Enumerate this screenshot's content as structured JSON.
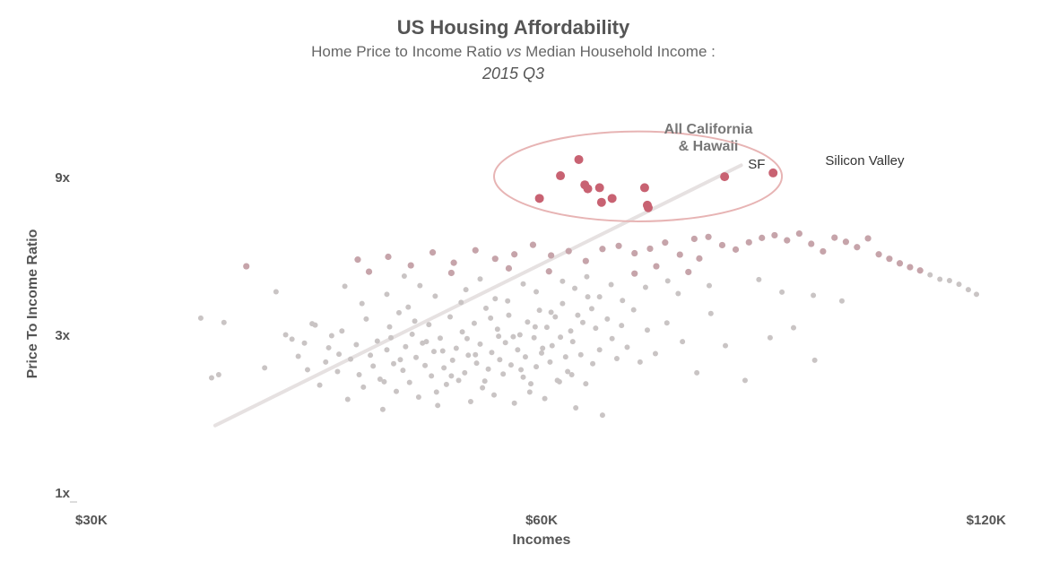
{
  "chart_data": {
    "type": "scatter",
    "title": "US Housing Affordability",
    "subtitle_pre": "Home Price to Income Ratio ",
    "subtitle_vs": "vs",
    "subtitle_post": " Median Household Income :",
    "subtitle2": "2015 Q3",
    "xlabel": "Incomes",
    "ylabel": "Price To Income Ratio",
    "x_scale": "log",
    "y_scale": "log",
    "xlim": [
      30000,
      120000
    ],
    "ylim": [
      1,
      13
    ],
    "x_ticks": [
      {
        "value": 30000,
        "label": "$30K"
      },
      {
        "value": 60000,
        "label": "$60K"
      },
      {
        "value": 120000,
        "label": "$120K"
      }
    ],
    "y_ticks": [
      {
        "value": 1,
        "label": "1x"
      },
      {
        "value": 3,
        "label": "3x"
      },
      {
        "value": 9,
        "label": "9x"
      }
    ],
    "trend_line": {
      "x": [
        36000,
        82000
      ],
      "y": [
        1.6,
        9.8
      ]
    },
    "group_annotation": {
      "label_line1": "All California",
      "label_line2": "& Hawaii",
      "center": [
        70000,
        8.9
      ],
      "half_width_x": [
        55700,
        87400
      ],
      "half_height_y": [
        6.63,
        12.4
      ]
    },
    "annotations": [
      {
        "text": "SF",
        "x": 84000,
        "y": 9.05
      },
      {
        "text": "Silicon Valley",
        "x": 99500,
        "y": 9.3
      }
    ],
    "colors": {
      "point_light": "#c9c4c4",
      "point_mid": "#c6a4aa",
      "point_strong": "#c86272",
      "trend": "#e6e1e1",
      "ellipse": "#e7b4b4"
    },
    "points": [
      [
        35200,
        3.38
      ],
      [
        35800,
        2.23
      ],
      [
        36200,
        2.28
      ],
      [
        36500,
        3.28
      ],
      [
        37800,
        4.85
      ],
      [
        38900,
        2.39
      ],
      [
        39600,
        4.06
      ],
      [
        40200,
        3.01
      ],
      [
        40600,
        2.92
      ],
      [
        41000,
        2.59
      ],
      [
        41400,
        2.84
      ],
      [
        41600,
        2.36
      ],
      [
        41900,
        3.25
      ],
      [
        42400,
        2.12
      ],
      [
        42800,
        2.49
      ],
      [
        43000,
        2.75
      ],
      [
        43200,
        2.99
      ],
      [
        43600,
        2.33
      ],
      [
        43900,
        3.09
      ],
      [
        44300,
        1.92
      ],
      [
        44500,
        2.54
      ],
      [
        44900,
        2.81
      ],
      [
        45100,
        2.28
      ],
      [
        45400,
        2.09
      ],
      [
        45600,
        3.36
      ],
      [
        45900,
        2.61
      ],
      [
        46100,
        2.42
      ],
      [
        46400,
        2.88
      ],
      [
        46600,
        2.21
      ],
      [
        46800,
        1.79
      ],
      [
        47100,
        2.71
      ],
      [
        47300,
        3.18
      ],
      [
        47600,
        2.46
      ],
      [
        47800,
        2.03
      ],
      [
        48000,
        3.51
      ],
      [
        48300,
        2.35
      ],
      [
        48500,
        2.77
      ],
      [
        48800,
        2.16
      ],
      [
        49000,
        3.02
      ],
      [
        49300,
        2.57
      ],
      [
        49500,
        1.95
      ],
      [
        49800,
        2.84
      ],
      [
        50000,
        2.43
      ],
      [
        50300,
        3.23
      ],
      [
        50500,
        2.26
      ],
      [
        50700,
        2.68
      ],
      [
        51000,
        1.84
      ],
      [
        51200,
        2.94
      ],
      [
        51500,
        2.39
      ],
      [
        51700,
        2.13
      ],
      [
        52000,
        3.41
      ],
      [
        52200,
        2.52
      ],
      [
        52500,
        2.74
      ],
      [
        52700,
        2.19
      ],
      [
        53000,
        3.07
      ],
      [
        53200,
        2.31
      ],
      [
        53500,
        2.61
      ],
      [
        53700,
        1.89
      ],
      [
        54000,
        3.26
      ],
      [
        54200,
        2.47
      ],
      [
        54500,
        2.82
      ],
      [
        54700,
        2.08
      ],
      [
        55000,
        3.62
      ],
      [
        55200,
        2.37
      ],
      [
        55500,
        2.66
      ],
      [
        55700,
        1.98
      ],
      [
        56000,
        3.13
      ],
      [
        56200,
        2.53
      ],
      [
        56500,
        2.29
      ],
      [
        56700,
        2.85
      ],
      [
        57000,
        3.45
      ],
      [
        57200,
        2.44
      ],
      [
        57500,
        1.87
      ],
      [
        57800,
        2.71
      ],
      [
        58000,
        3.01
      ],
      [
        58300,
        2.24
      ],
      [
        58500,
        2.58
      ],
      [
        58700,
        3.29
      ],
      [
        59000,
        2.14
      ],
      [
        59300,
        2.95
      ],
      [
        59500,
        2.41
      ],
      [
        59800,
        3.57
      ],
      [
        60000,
        2.65
      ],
      [
        60300,
        1.93
      ],
      [
        60500,
        3.17
      ],
      [
        60800,
        2.49
      ],
      [
        61000,
        2.79
      ],
      [
        61300,
        3.41
      ],
      [
        61500,
        2.19
      ],
      [
        61800,
        2.96
      ],
      [
        62000,
        3.74
      ],
      [
        62300,
        2.58
      ],
      [
        62500,
        2.33
      ],
      [
        62800,
        3.09
      ],
      [
        63000,
        2.87
      ],
      [
        63300,
        1.81
      ],
      [
        63500,
        3.45
      ],
      [
        63800,
        2.62
      ],
      [
        64000,
        3.28
      ],
      [
        64300,
        2.14
      ],
      [
        64500,
        3.92
      ],
      [
        65000,
        2.46
      ],
      [
        65300,
        3.15
      ],
      [
        65700,
        2.71
      ],
      [
        66000,
        1.72
      ],
      [
        66500,
        3.36
      ],
      [
        67000,
        2.93
      ],
      [
        67500,
        2.55
      ],
      [
        68000,
        3.21
      ],
      [
        68600,
        2.76
      ],
      [
        69300,
        3.58
      ],
      [
        70000,
        2.49
      ],
      [
        70800,
        3.11
      ],
      [
        71700,
        2.64
      ],
      [
        73000,
        3.27
      ],
      [
        74800,
        2.87
      ],
      [
        76500,
        2.31
      ],
      [
        78200,
        3.49
      ],
      [
        80000,
        2.79
      ],
      [
        82500,
        2.19
      ],
      [
        85800,
        2.95
      ],
      [
        89000,
        3.16
      ],
      [
        92000,
        2.52
      ],
      [
        96000,
        3.81
      ],
      [
        42100,
        3.22
      ],
      [
        43700,
        2.63
      ],
      [
        45300,
        3.74
      ],
      [
        46900,
        2.17
      ],
      [
        48700,
        3.65
      ],
      [
        50900,
        2.02
      ],
      [
        52900,
        3.77
      ],
      [
        54900,
        2.18
      ],
      [
        56900,
        3.81
      ],
      [
        58900,
        2.02
      ],
      [
        60900,
        3.52
      ],
      [
        62900,
        2.28
      ],
      [
        64900,
        3.61
      ],
      [
        61700,
        2.17
      ],
      [
        47400,
        2.95
      ],
      [
        49200,
        3.31
      ],
      [
        51400,
        2.69
      ],
      [
        53400,
        2.93
      ],
      [
        55400,
        3.38
      ],
      [
        57400,
        2.97
      ],
      [
        59400,
        3.18
      ],
      [
        48100,
        2.53
      ],
      [
        50100,
        2.87
      ],
      [
        52100,
        2.26
      ],
      [
        54100,
        2.62
      ],
      [
        56100,
        2.98
      ],
      [
        58100,
        2.36
      ],
      [
        60100,
        2.74
      ],
      [
        44100,
        4.22
      ],
      [
        45800,
        4.67
      ],
      [
        47100,
        3.99
      ],
      [
        48400,
        4.53
      ],
      [
        49600,
        4.24
      ],
      [
        50800,
        3.94
      ],
      [
        52100,
        4.63
      ],
      [
        53300,
        4.12
      ],
      [
        54500,
        4.44
      ],
      [
        55800,
        3.87
      ],
      [
        57000,
        4.78
      ],
      [
        58300,
        4.29
      ],
      [
        59500,
        4.06
      ],
      [
        60700,
        4.68
      ],
      [
        62000,
        4.37
      ],
      [
        63200,
        4.16
      ],
      [
        64400,
        4.51
      ],
      [
        65700,
        3.92
      ],
      [
        66900,
        4.27
      ],
      [
        68100,
        3.82
      ],
      [
        69400,
        4.61
      ],
      [
        70600,
        4.19
      ],
      [
        71800,
        4.85
      ],
      [
        73100,
        4.38
      ],
      [
        74300,
        4.01
      ],
      [
        75500,
        4.66
      ],
      [
        76800,
        5.12
      ],
      [
        78000,
        4.24
      ],
      [
        45000,
        5.08
      ],
      [
        47200,
        5.18
      ],
      [
        48900,
        4.88
      ],
      [
        50600,
        5.34
      ],
      [
        52300,
        4.97
      ],
      [
        54100,
        5.42
      ],
      [
        55800,
        5.11
      ],
      [
        57500,
        5.27
      ],
      [
        59200,
        5.63
      ],
      [
        60900,
        5.23
      ],
      [
        62600,
        5.39
      ],
      [
        64300,
        5.03
      ],
      [
        66000,
        5.47
      ],
      [
        67700,
        5.59
      ],
      [
        69400,
        5.31
      ],
      [
        71100,
        5.48
      ],
      [
        72800,
        5.72
      ],
      [
        74500,
        5.26
      ],
      [
        76200,
        5.87
      ],
      [
        77900,
        5.95
      ],
      [
        79600,
        5.62
      ],
      [
        81300,
        5.45
      ],
      [
        83000,
        5.73
      ],
      [
        84700,
        5.91
      ],
      [
        86400,
        6.02
      ],
      [
        88100,
        5.81
      ],
      [
        89800,
        6.09
      ],
      [
        91500,
        5.67
      ],
      [
        93200,
        5.38
      ],
      [
        94900,
        5.92
      ],
      [
        96600,
        5.75
      ],
      [
        98300,
        5.54
      ],
      [
        100000,
        5.89
      ],
      [
        101700,
        5.27
      ],
      [
        103400,
        5.11
      ],
      [
        105100,
        4.95
      ],
      [
        106800,
        4.82
      ],
      [
        108500,
        4.71
      ],
      [
        110200,
        4.57
      ],
      [
        111900,
        4.43
      ],
      [
        113600,
        4.39
      ],
      [
        115300,
        4.28
      ],
      [
        117000,
        4.12
      ],
      [
        118500,
        3.99
      ],
      [
        91800,
        3.96
      ],
      [
        87400,
        4.05
      ],
      [
        84300,
        4.42
      ]
    ],
    "highlight_points": [
      [
        59800,
        7.78
      ],
      [
        61800,
        9.11
      ],
      [
        63600,
        10.2
      ],
      [
        64200,
        8.55
      ],
      [
        64500,
        8.32
      ],
      [
        65700,
        8.38
      ],
      [
        65900,
        7.57
      ],
      [
        67000,
        7.78
      ],
      [
        70800,
        7.42
      ],
      [
        70900,
        7.29
      ],
      [
        70500,
        8.38
      ],
      [
        79900,
        9.05
      ],
      [
        86200,
        9.29
      ]
    ]
  }
}
